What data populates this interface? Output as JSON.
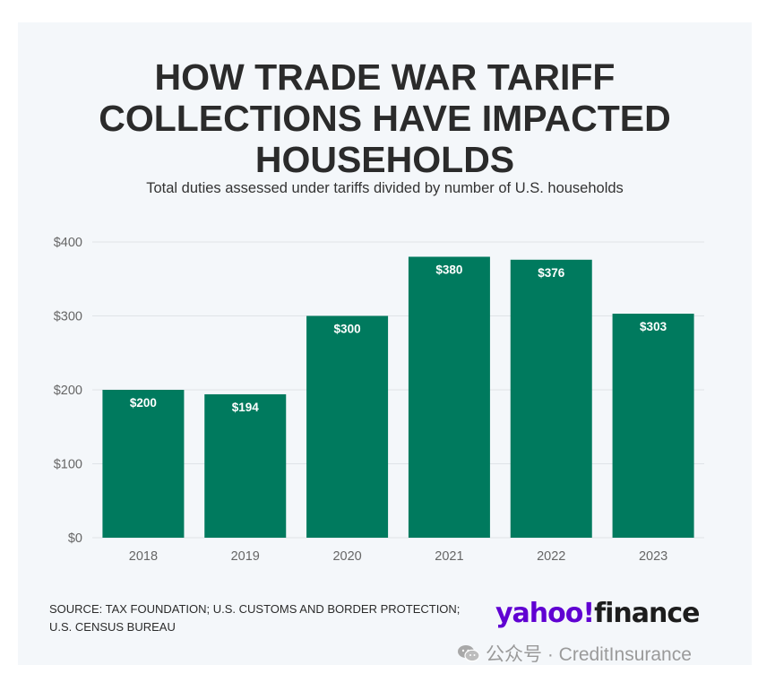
{
  "chart_data": {
    "type": "bar",
    "title": "HOW TRADE WAR TARIFF\nCOLLECTIONS HAVE IMPACTED\nHOUSEHOLDS",
    "subtitle": "Total duties assessed under tariffs divided by number of U.S. households",
    "categories": [
      "2018",
      "2019",
      "2020",
      "2021",
      "2022",
      "2023"
    ],
    "values": [
      200,
      194,
      300,
      380,
      376,
      303
    ],
    "data_labels": [
      "$200",
      "$194",
      "$300",
      "$380",
      "$376",
      "$303"
    ],
    "y_ticks": [
      0,
      100,
      200,
      300,
      400
    ],
    "y_tick_labels": [
      "$0",
      "$100",
      "$200",
      "$300",
      "$400"
    ],
    "ylim": [
      0,
      400
    ],
    "grid": true,
    "bar_color": "#007a5e",
    "grid_color": "#dfe3e7"
  },
  "footer": {
    "source": "SOURCE: TAX FOUNDATION; U.S. CUSTOMS AND BORDER PROTECTION; U.S. CENSUS BUREAU",
    "logo_yahoo": "yahoo!",
    "logo_finance": "finance"
  },
  "watermark": {
    "text": "公众号 · CreditInsurance",
    "icon": "wechat-icon"
  }
}
